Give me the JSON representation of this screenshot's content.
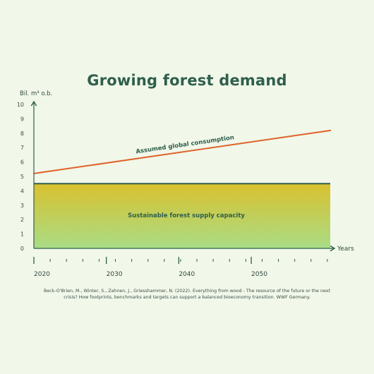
{
  "chart_data": {
    "type": "area",
    "title": "Growing forest demand",
    "ylabel": "Bil. m³ o.b.",
    "xlabel": "Years",
    "x_ticks": [
      2020,
      2030,
      2040,
      2050
    ],
    "y_ticks": [
      0,
      1,
      2,
      3,
      4,
      5,
      6,
      7,
      8,
      9,
      10
    ],
    "xlim": [
      2020,
      2061
    ],
    "ylim": [
      0,
      10
    ],
    "series": [
      {
        "name": "Sustainable forest supply capacity",
        "kind": "area",
        "x": [
          2020,
          2061
        ],
        "y": [
          4.5,
          4.5
        ],
        "color_top": "#d9c12e",
        "color_bottom": "#a9dc86",
        "line_color": "#2f5f4c"
      },
      {
        "name": "Assumed global consumption",
        "kind": "line",
        "x": [
          2020,
          2061
        ],
        "y": [
          5.2,
          8.2
        ],
        "color": "#e0622a"
      }
    ]
  },
  "citation": "Beck-O'Brien, M., Winter, S., Zahnen, J., Griesshammer, N. (2022). Everything from wood - The resource of the future or the next crisis? How footprints, benchmarks and targets can support a balanced bioeconomy transition. WWF Germany.",
  "colors": {
    "background": "#f1f7e9",
    "axis": "#2f5f4c",
    "title": "#2f5f4c"
  }
}
